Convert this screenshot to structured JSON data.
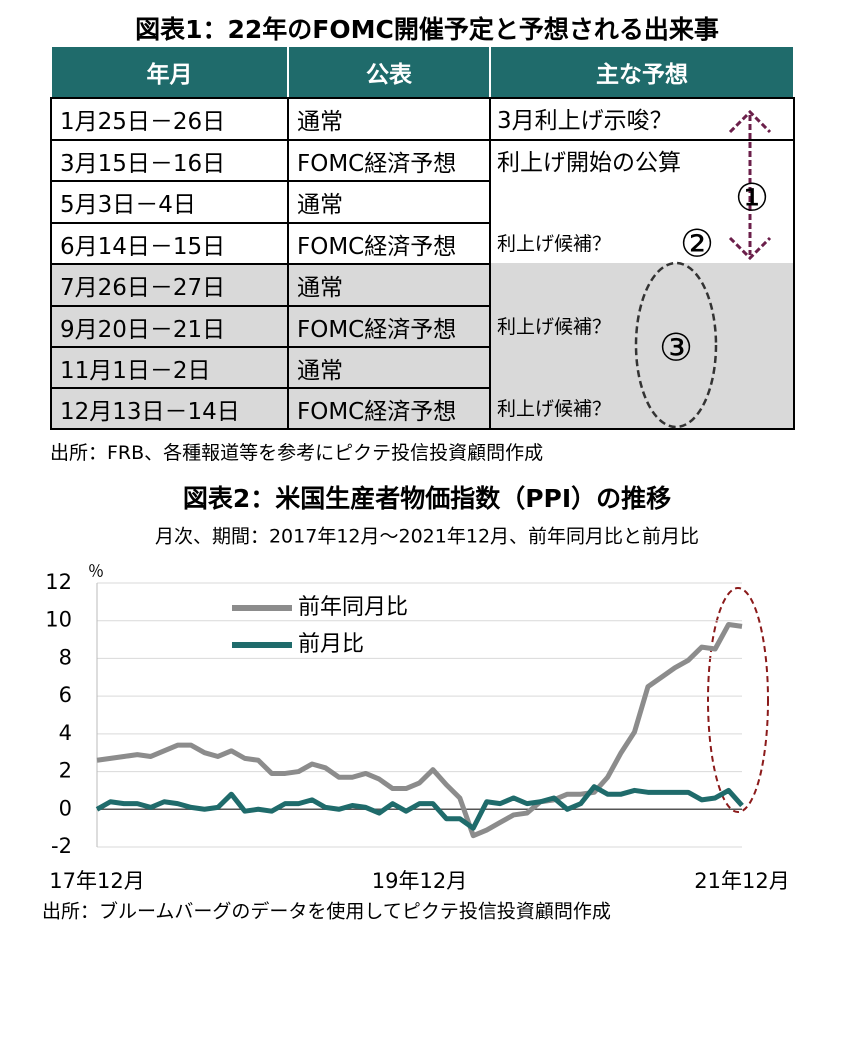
{
  "table": {
    "title": "図表1：22年のFOMC開催予定と予想される出来事",
    "header": [
      "年月",
      "公表",
      "主な予想"
    ],
    "rows": [
      [
        "1月25日－26日",
        "通常"
      ],
      [
        "3月15日－16日",
        "FOMC経済予想"
      ],
      [
        "5月3日－4日",
        "通常"
      ],
      [
        "6月14日－15日",
        "FOMC経済予想"
      ],
      [
        "7月26日－27日",
        "通常"
      ],
      [
        "9月20日－21日",
        "FOMC経済予想"
      ],
      [
        "11月1日－2日",
        "通常"
      ],
      [
        "12月13日－14日",
        "FOMC経済予想"
      ]
    ],
    "expectations": [
      "3月利上げ示唆？",
      "利上げ開始の公算",
      "利上げ候補？",
      "利上げ候補？",
      "利上げ候補？"
    ],
    "annotations": [
      "①",
      "②",
      "③"
    ],
    "source": "出所：FRB、各種報道等を参考にピクテ投信投資顧問作成"
  },
  "chart_data": {
    "type": "line",
    "title": "図表2：米国生産者物価指数（PPI）の推移",
    "subtitle": "月次、期間：2017年12月～2021年12月、前年同月比と前月比",
    "y_unit": "％",
    "categories": [
      "17年12月",
      null,
      null,
      null,
      null,
      null,
      null,
      null,
      null,
      null,
      null,
      null,
      null,
      null,
      null,
      null,
      null,
      null,
      null,
      null,
      null,
      null,
      null,
      null,
      "19年12月",
      null,
      null,
      null,
      null,
      null,
      null,
      null,
      null,
      null,
      null,
      null,
      null,
      null,
      null,
      null,
      null,
      null,
      null,
      null,
      null,
      null,
      null,
      null,
      "21年12月"
    ],
    "series": [
      {
        "name": "前年同月比",
        "color": "#8c8c8c",
        "values": [
          2.6,
          2.7,
          2.8,
          2.9,
          2.8,
          3.1,
          3.4,
          3.4,
          3.0,
          2.8,
          3.1,
          2.7,
          2.6,
          1.9,
          1.9,
          2.0,
          2.4,
          2.2,
          1.7,
          1.7,
          1.9,
          1.6,
          1.1,
          1.1,
          1.4,
          2.1,
          1.3,
          0.6,
          -1.4,
          -1.1,
          -0.7,
          -0.3,
          -0.2,
          0.4,
          0.5,
          0.8,
          0.8,
          0.9,
          1.7,
          3.0,
          4.1,
          6.5,
          7.0,
          7.5,
          7.9,
          8.6,
          8.5,
          9.8,
          9.7
        ]
      },
      {
        "name": "前月比",
        "color": "#1f6b6b",
        "values": [
          0.0,
          0.4,
          0.3,
          0.3,
          0.1,
          0.4,
          0.3,
          0.1,
          0.0,
          0.1,
          0.8,
          -0.1,
          0.0,
          -0.1,
          0.3,
          0.3,
          0.5,
          0.1,
          0.0,
          0.2,
          0.1,
          -0.2,
          0.3,
          -0.1,
          0.3,
          0.3,
          -0.5,
          -0.5,
          -1.0,
          0.4,
          0.3,
          0.6,
          0.3,
          0.4,
          0.6,
          0.0,
          0.3,
          1.2,
          0.8,
          0.8,
          1.0,
          0.9,
          0.9,
          0.9,
          0.9,
          0.5,
          0.6,
          1.0,
          0.2
        ]
      }
    ],
    "ylim": [
      -2,
      12
    ],
    "yticks": [
      -2,
      0,
      2,
      4,
      6,
      8,
      10,
      12
    ],
    "grid": true,
    "legend": "upper-left",
    "source": "出所：ブルームバーグのデータを使用してピクテ投信投資顧問作成"
  }
}
